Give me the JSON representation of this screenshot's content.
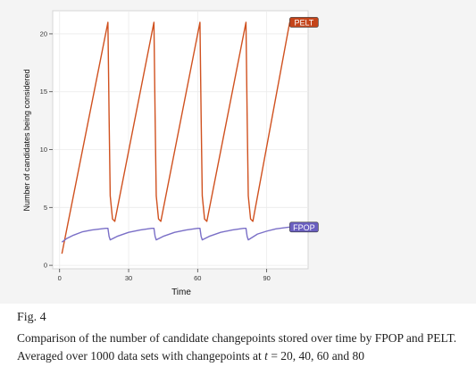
{
  "chart_data": {
    "type": "line",
    "title": "",
    "xlabel": "Time",
    "ylabel": "Number of candidates being considered",
    "xlim": [
      -3,
      108
    ],
    "ylim": [
      -0.3,
      22
    ],
    "x_ticks": [
      0,
      30,
      60,
      90
    ],
    "x_tick_labels": [
      "0",
      "30",
      "60",
      "90"
    ],
    "y_ticks": [
      0,
      5,
      10,
      15,
      20
    ],
    "y_tick_labels": [
      "0",
      "5",
      "10",
      "15",
      "20"
    ],
    "grid": true,
    "series": [
      {
        "name": "PELT",
        "color": "#d0511f",
        "label_color": "#c4441a",
        "x": [
          1,
          21,
          21.5,
          22,
          23,
          24,
          41,
          41.5,
          42,
          43,
          44,
          61,
          61.5,
          62,
          63,
          64,
          81,
          81.5,
          82,
          83,
          84,
          100
        ],
        "y": [
          1,
          21,
          13,
          6,
          4,
          3.8,
          21,
          13,
          6,
          4,
          3.8,
          21,
          13,
          6,
          4,
          3.8,
          21,
          13,
          6,
          4,
          3.8,
          21
        ]
      },
      {
        "name": "FPOP",
        "color": "#7a6fc7",
        "label_color": "#6a5fc0",
        "x": [
          1,
          3,
          6,
          10,
          14,
          18,
          20,
          21,
          21.5,
          22,
          25,
          30,
          35,
          40,
          41,
          41.5,
          42,
          45,
          50,
          55,
          60,
          61,
          61.5,
          62,
          65,
          70,
          75,
          80,
          81,
          81.5,
          82,
          86,
          90,
          94,
          98,
          100
        ],
        "y": [
          2,
          2.3,
          2.6,
          2.9,
          3.05,
          3.15,
          3.2,
          3.2,
          2.5,
          2.2,
          2.5,
          2.85,
          3.05,
          3.2,
          3.2,
          2.5,
          2.2,
          2.5,
          2.85,
          3.05,
          3.2,
          3.2,
          2.5,
          2.2,
          2.5,
          2.85,
          3.05,
          3.2,
          3.2,
          2.5,
          2.2,
          2.7,
          2.95,
          3.15,
          3.25,
          3.3
        ]
      }
    ]
  },
  "caption": {
    "label": "Fig. 4",
    "text_before_math": "Comparison of the number of candidate changepoints stored over time by FPOP and PELT. Averaged over 1000 data sets with changepoints at ",
    "math_var": "t",
    "math_values": " = 20, 40, 60",
    "text_after_math": " and 80"
  }
}
